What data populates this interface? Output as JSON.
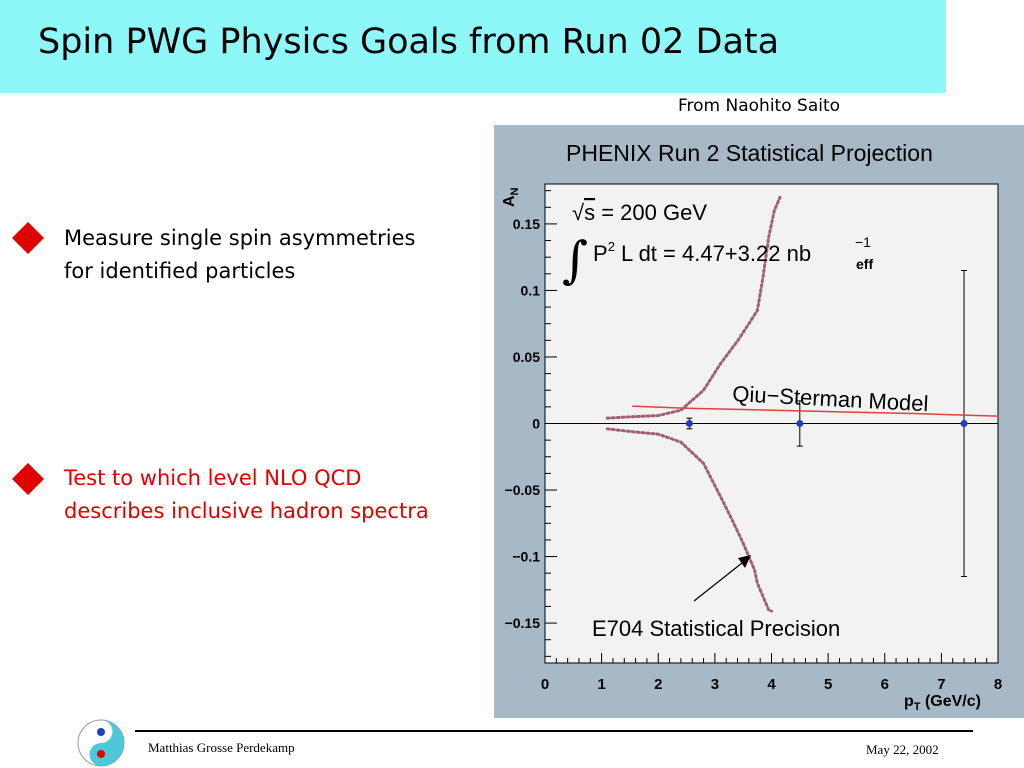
{
  "slide": {
    "title": "Spin PWG Physics  Goals from Run 02  Data",
    "credit": "From Naohito Saito",
    "bullets": [
      {
        "lines": [
          "Measure single spin asymmetries",
          "for identified particles"
        ],
        "color": "#000000"
      },
      {
        "lines": [
          "Test to which level NLO QCD",
          "describes inclusive hadron spectra"
        ],
        "color": "#e00000"
      }
    ],
    "bullet_color": "#e00000",
    "footer": {
      "author": "Matthias Grosse Perdekamp",
      "date": "May  22, 2002"
    }
  },
  "chart_data": {
    "type": "scatter",
    "title": "PHENIX Run 2 Statistical Projection",
    "xlabel": "p",
    "xlabel_sub": "T",
    "xlabel_units": " (GeV/c)",
    "ylabel": "A",
    "ylabel_sub": "N",
    "xlim": [
      0,
      8
    ],
    "ylim": [
      -0.18,
      0.18
    ],
    "x_ticks": [
      "0",
      "1",
      "2",
      "3",
      "4",
      "5",
      "6",
      "7",
      "8"
    ],
    "y_ticks": [
      {
        "v": 0.15,
        "label": "0.15"
      },
      {
        "v": 0.1,
        "label": "0.1"
      },
      {
        "v": 0.05,
        "label": "0.05"
      },
      {
        "v": 0,
        "label": "0"
      },
      {
        "v": -0.05,
        "label": "−0.05"
      },
      {
        "v": -0.1,
        "label": "−0.1"
      },
      {
        "v": -0.15,
        "label": "−0.15"
      }
    ],
    "annotations": {
      "sqrt_s_prefix": "√",
      "sqrt_s_body": "s",
      "sqrt_s_value": " = 200 GeV",
      "lumi_main": "P",
      "lumi_exp": "2",
      "lumi_text": " L dt = 4.47+3.22 nb",
      "lumi_unit_exp": "−1",
      "lumi_unit_sub": "eff",
      "model_label": "Qiu−Sterman Model",
      "e704_label": "E704 Statistical Precision"
    },
    "series": [
      {
        "kind": "points",
        "x": [
          2.55,
          4.5,
          7.4
        ],
        "y": [
          0,
          0,
          0
        ],
        "yerr": [
          0.004,
          0.017,
          0.115
        ]
      },
      {
        "kind": "model",
        "x": [
          1.55,
          2.5,
          3.5,
          4.5,
          5.5,
          6.5,
          7.4,
          8.0
        ],
        "y": [
          0.013,
          0.0115,
          0.0105,
          0.0095,
          0.0085,
          0.0075,
          0.0063,
          0.0055
        ]
      },
      {
        "kind": "band_upper",
        "x": [
          1.1,
          1.5,
          2.0,
          2.4,
          2.8,
          3.1,
          3.4,
          3.6,
          3.75,
          3.85,
          3.95,
          4.05,
          4.15
        ],
        "y": [
          0.004,
          0.005,
          0.006,
          0.01,
          0.025,
          0.045,
          0.062,
          0.075,
          0.085,
          0.11,
          0.14,
          0.16,
          0.17
        ]
      },
      {
        "kind": "band_lower",
        "x": [
          1.1,
          1.5,
          2.0,
          2.4,
          2.8,
          3.1,
          3.3,
          3.5,
          3.6,
          3.7,
          3.75,
          3.85,
          3.95,
          4.0
        ],
        "y": [
          -0.004,
          -0.006,
          -0.008,
          -0.014,
          -0.03,
          -0.055,
          -0.072,
          -0.09,
          -0.1,
          -0.11,
          -0.12,
          -0.13,
          -0.14,
          -0.141
        ]
      }
    ],
    "colors": {
      "frame_bg": "#a7b8c6",
      "plot_bg": "#f2f2f2",
      "points": "#1f3fbf",
      "model": "#e04040",
      "band": "#a06070"
    }
  }
}
